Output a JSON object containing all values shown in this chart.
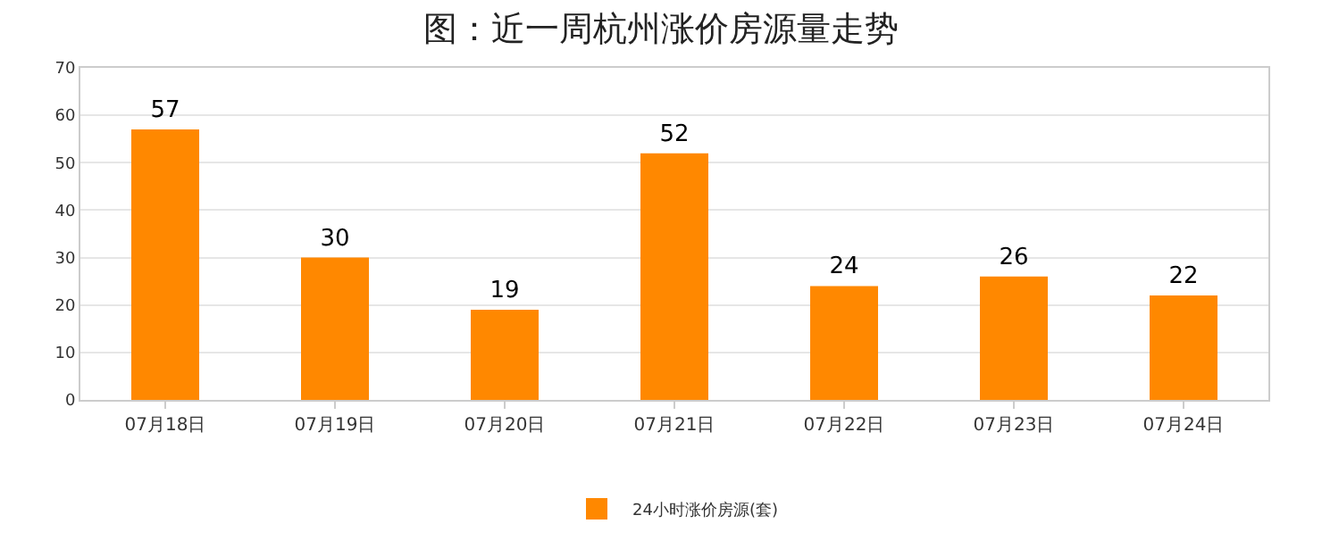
{
  "chart_data": {
    "type": "bar",
    "title": "图：近一周杭州涨价房源量走势",
    "categories": [
      "07月18日",
      "07月19日",
      "07月20日",
      "07月21日",
      "07月22日",
      "07月23日",
      "07月24日"
    ],
    "series": [
      {
        "name": "24小时涨价房源(套)",
        "color": "#ff8800",
        "values": [
          57,
          30,
          19,
          52,
          24,
          26,
          22
        ]
      }
    ],
    "ylim": [
      0,
      70
    ],
    "yticks": [
      0,
      10,
      20,
      30,
      40,
      50,
      60,
      70
    ],
    "grid": "y",
    "legend": "bottom",
    "data_labels": true
  }
}
